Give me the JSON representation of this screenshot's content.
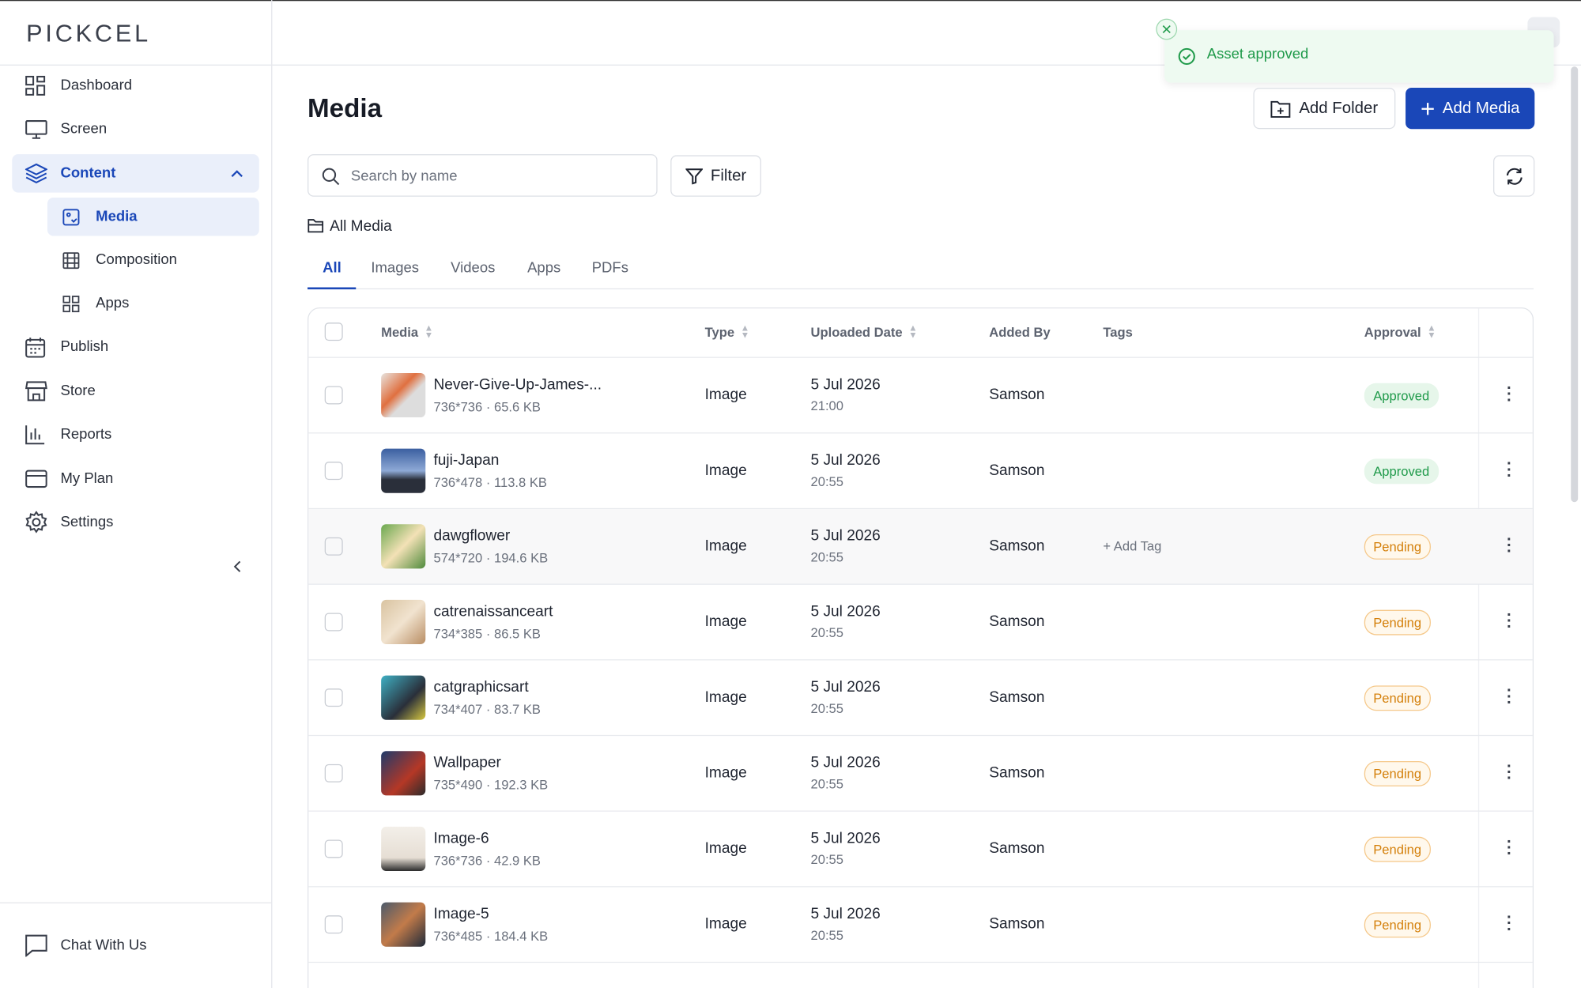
{
  "sidebar": {
    "logo": "PICKCEL",
    "nav": {
      "dashboard": "Dashboard",
      "screen": "Screen",
      "content": "Content",
      "media": "Media",
      "composition": "Composition",
      "apps": "Apps",
      "publish": "Publish",
      "store": "Store",
      "reports": "Reports",
      "my_plan": "My Plan",
      "settings": "Settings"
    },
    "chat": "Chat With Us"
  },
  "toast": {
    "message": "Asset approved"
  },
  "page": {
    "title": "Media",
    "add_folder": "Add Folder",
    "add_media": "Add Media",
    "search_placeholder": "Search by name",
    "filter": "Filter",
    "breadcrumb": "All Media",
    "tabs": [
      "All",
      "Images",
      "Videos",
      "Apps",
      "PDFs"
    ]
  },
  "table": {
    "columns": [
      "Media",
      "Type",
      "Uploaded Date",
      "Added By",
      "Tags",
      "Approval"
    ],
    "rows": [
      {
        "name": "Never-Give-Up-James-...",
        "meta": "736*736 · 65.6 KB",
        "type": "Image",
        "date": "5 Jul 2026",
        "time": "21:00",
        "added_by": "Samson",
        "tags": null,
        "approval": "Approved"
      },
      {
        "name": "fuji-Japan",
        "meta": "736*478 · 113.8 KB",
        "type": "Image",
        "date": "5 Jul 2026",
        "time": "20:55",
        "added_by": "Samson",
        "tags": null,
        "approval": "Approved"
      },
      {
        "name": "dawgflower",
        "meta": "574*720 · 194.6 KB",
        "type": "Image",
        "date": "5 Jul 2026",
        "time": "20:55",
        "added_by": "Samson",
        "tags": "+ Add Tag",
        "approval": "Pending"
      },
      {
        "name": "catrenaissanceart",
        "meta": "734*385 · 86.5 KB",
        "type": "Image",
        "date": "5 Jul 2026",
        "time": "20:55",
        "added_by": "Samson",
        "tags": null,
        "approval": "Pending"
      },
      {
        "name": "catgraphicsart",
        "meta": "734*407 · 83.7 KB",
        "type": "Image",
        "date": "5 Jul 2026",
        "time": "20:55",
        "added_by": "Samson",
        "tags": null,
        "approval": "Pending"
      },
      {
        "name": "Wallpaper",
        "meta": "735*490 · 192.3 KB",
        "type": "Image",
        "date": "5 Jul 2026",
        "time": "20:55",
        "added_by": "Samson",
        "tags": null,
        "approval": "Pending"
      },
      {
        "name": "Image-6",
        "meta": "736*736 · 42.9 KB",
        "type": "Image",
        "date": "5 Jul 2026",
        "time": "20:55",
        "added_by": "Samson",
        "tags": null,
        "approval": "Pending"
      },
      {
        "name": "Image-5",
        "meta": "736*485 · 184.4 KB",
        "type": "Image",
        "date": "5 Jul 2026",
        "time": "20:55",
        "added_by": "Samson",
        "tags": null,
        "approval": "Pending"
      }
    ]
  }
}
